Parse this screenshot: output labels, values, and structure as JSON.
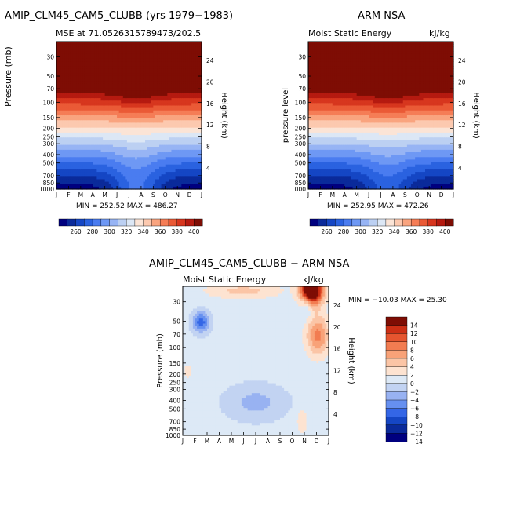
{
  "figure_title_left": "AMIP_CLM45_CAM5_CLUBB (yrs 1979−1983)",
  "figure_title_right": "ARM NSA",
  "figure_title_diff": "AMIP_CLM45_CAM5_CLUBB − ARM NSA",
  "palette": {
    "mse": [
      "#00007f",
      "#0a2a9a",
      "#1546c4",
      "#2a62e0",
      "#4a7cf0",
      "#6e98f4",
      "#97b4f4",
      "#bcd0f2",
      "#dce7f5",
      "#fbe4d6",
      "#fcc9af",
      "#f9a47f",
      "#f57d56",
      "#ea5a36",
      "#d7361e",
      "#b51a10",
      "#7e0d04"
    ],
    "diff": [
      "#00007f",
      "#0a2a9a",
      "#1546c4",
      "#3466e6",
      "#6690f0",
      "#98b2f2",
      "#c2d3f2",
      "#dde9f6",
      "#fde3d1",
      "#fbc5a6",
      "#f8a278",
      "#f27c51",
      "#e5552f",
      "#cc2f15",
      "#7e0d04"
    ]
  },
  "charts": [
    {
      "id": "model",
      "subtitle_left": "MSE at 71.0526315789473/202.5",
      "subtitle_right": "",
      "ylabel_left": "Pressure (mb)",
      "ylabel_right": "Height (km)",
      "stats": "MIN = 252.52  MAX = 486.27"
    },
    {
      "id": "obs",
      "subtitle_left": "Moist Static Energy",
      "subtitle_right": "kJ/kg",
      "ylabel_left": "pressure level",
      "ylabel_right": "Height (km)",
      "stats": "MIN = 252.95  MAX = 472.26"
    },
    {
      "id": "diff",
      "subtitle_left": "Moist Static Energy",
      "subtitle_right": "kJ/kg",
      "ylabel_left": "Pressure (mb)",
      "ylabel_right": "Height (km)",
      "stats": "MIN = −10.03  MAX =  25.30"
    }
  ],
  "chart_data": [
    {
      "type": "heatmap",
      "title": "AMIP_CLM45_CAM5_CLUBB (yrs 1979−1983)",
      "subtitle": "MSE at 71.0526315789473/202.5",
      "x_ticklabels": [
        "J",
        "F",
        "M",
        "A",
        "M",
        "J",
        "J",
        "A",
        "S",
        "O",
        "N",
        "D",
        "J"
      ],
      "y_ticklabels": [
        "30",
        "50",
        "70",
        "100",
        "150",
        "200",
        "250",
        "300",
        "400",
        "500",
        "700",
        "850",
        "1000"
      ],
      "y2_ticklabels": [
        "24",
        "20",
        "16",
        "12",
        "8",
        "4"
      ],
      "ylabel": "Pressure (mb)",
      "y2label": "Height (km)",
      "ylim": [
        1000,
        20
      ],
      "min": 252.52,
      "max": 486.27,
      "colorbar_labels": [
        "260",
        "280",
        "300",
        "320",
        "340",
        "360",
        "380",
        "400"
      ]
    },
    {
      "type": "heatmap",
      "title": "ARM NSA",
      "subtitle": "Moist Static Energy",
      "units": "kJ/kg",
      "x_ticklabels": [
        "J",
        "F",
        "M",
        "A",
        "M",
        "J",
        "J",
        "A",
        "S",
        "O",
        "N",
        "D",
        "J"
      ],
      "y_ticklabels": [
        "30",
        "50",
        "70",
        "100",
        "150",
        "200",
        "250",
        "300",
        "400",
        "500",
        "700",
        "850",
        "1000"
      ],
      "y2_ticklabels": [
        "24",
        "20",
        "16",
        "12",
        "8",
        "4"
      ],
      "ylabel": "pressure level",
      "y2label": "Height (km)",
      "ylim": [
        1000,
        20
      ],
      "min": 252.95,
      "max": 472.26,
      "colorbar_labels": [
        "260",
        "280",
        "300",
        "320",
        "340",
        "360",
        "380",
        "400"
      ]
    },
    {
      "type": "heatmap",
      "title": "AMIP_CLM45_CAM5_CLUBB − ARM NSA",
      "subtitle": "Moist Static Energy",
      "units": "kJ/kg",
      "x_ticklabels": [
        "J",
        "F",
        "M",
        "A",
        "M",
        "J",
        "J",
        "A",
        "S",
        "O",
        "N",
        "D",
        "J"
      ],
      "y_ticklabels": [
        "30",
        "50",
        "70",
        "100",
        "150",
        "200",
        "250",
        "300",
        "400",
        "500",
        "700",
        "850",
        "1000"
      ],
      "y2_ticklabels": [
        "24",
        "20",
        "16",
        "12",
        "8",
        "4"
      ],
      "ylabel": "Pressure (mb)",
      "y2label": "Height (km)",
      "ylim": [
        1000,
        20
      ],
      "min": -10.03,
      "max": 25.3,
      "colorbar_labels": [
        "14",
        "12",
        "10",
        "8",
        "6",
        "4",
        "2",
        "0",
        "−2",
        "−4",
        "−6",
        "−8",
        "−10",
        "−12",
        "−14"
      ]
    }
  ]
}
